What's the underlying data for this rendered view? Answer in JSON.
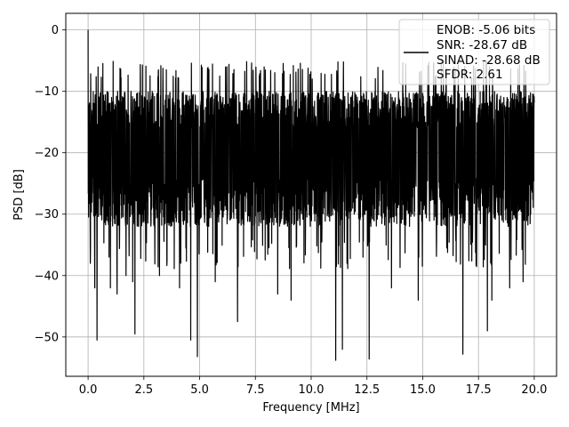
{
  "chart_data": {
    "type": "line",
    "title": "",
    "xlabel": "Frequency [MHz]",
    "ylabel": "PSD [dB]",
    "xlim": [
      -1,
      21
    ],
    "ylim": [
      -56.4,
      2.7
    ],
    "xticks": [
      0.0,
      2.5,
      5.0,
      7.5,
      10.0,
      12.5,
      15.0,
      17.5,
      20.0
    ],
    "xtick_labels": [
      "0.0",
      "2.5",
      "5.0",
      "7.5",
      "10.0",
      "12.5",
      "15.0",
      "17.5",
      "20.0"
    ],
    "yticks": [
      0,
      -10,
      -20,
      -30,
      -40,
      -50
    ],
    "ytick_labels": [
      "0",
      "−10",
      "−20",
      "−30",
      "−40",
      "−50"
    ],
    "grid": true,
    "legend_position": "top-right",
    "series": [
      {
        "color": "#000000",
        "x_range": [
          0,
          20
        ],
        "peak": {
          "x": 0.0,
          "y": 0
        },
        "noise_band_upper": -10,
        "noise_band_lower": -30,
        "deep_notches": [
          {
            "x": 0.1,
            "y": -38
          },
          {
            "x": 0.3,
            "y": -42
          },
          {
            "x": 0.4,
            "y": -50.5
          },
          {
            "x": 1.0,
            "y": -42
          },
          {
            "x": 1.3,
            "y": -43
          },
          {
            "x": 1.7,
            "y": -40
          },
          {
            "x": 2.0,
            "y": -41
          },
          {
            "x": 2.1,
            "y": -49.5
          },
          {
            "x": 3.2,
            "y": -40
          },
          {
            "x": 4.1,
            "y": -42
          },
          {
            "x": 4.6,
            "y": -50.5
          },
          {
            "x": 4.9,
            "y": -53.2
          },
          {
            "x": 5.7,
            "y": -41
          },
          {
            "x": 6.7,
            "y": -47.5
          },
          {
            "x": 8.5,
            "y": -43
          },
          {
            "x": 9.1,
            "y": -44
          },
          {
            "x": 11.1,
            "y": -53.8
          },
          {
            "x": 11.4,
            "y": -52
          },
          {
            "x": 12.6,
            "y": -53.6
          },
          {
            "x": 13.6,
            "y": -42
          },
          {
            "x": 14.8,
            "y": -44
          },
          {
            "x": 16.8,
            "y": -52.8
          },
          {
            "x": 17.9,
            "y": -49
          },
          {
            "x": 18.1,
            "y": -44
          },
          {
            "x": 18.9,
            "y": -42
          },
          {
            "x": 19.5,
            "y": -41
          }
        ],
        "mean_level": -20
      }
    ],
    "legend_entries": [
      "ENOB: -5.06 bits",
      "SNR: -28.67 dB",
      "SINAD: -28.68 dB",
      "SFDR: 2.61"
    ]
  },
  "legend": {
    "enob": "ENOB: -5.06 bits",
    "snr": "SNR: -28.67 dB",
    "sinad": "SINAD: -28.68 dB",
    "sfdr": "SFDR: 2.61"
  },
  "axes": {
    "xlabel": "Frequency [MHz]",
    "ylabel": "PSD [dB]"
  }
}
